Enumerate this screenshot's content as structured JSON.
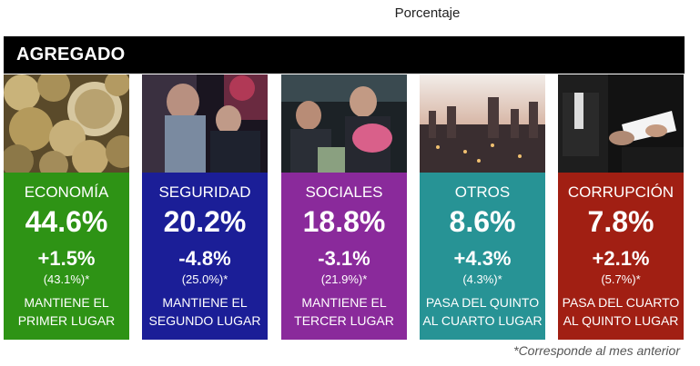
{
  "header_label": "Porcentaje",
  "section_title": "AGREGADO",
  "cards": [
    {
      "category": "ECONOMÍA",
      "percent": "44.6%",
      "change": "+1.5%",
      "previous": "(43.1%)*",
      "status_line1": "MANTIENE EL",
      "status_line2": "PRIMER LUGAR",
      "color": "#2e9315",
      "image": "coins-image"
    },
    {
      "category": "SEGURIDAD",
      "percent": "20.2%",
      "change": "-4.8%",
      "previous": "(25.0%)*",
      "status_line1": "MANTIENE EL",
      "status_line2": "SEGUNDO LUGAR",
      "color": "#1b1e97",
      "image": "arrest-image"
    },
    {
      "category": "SOCIALES",
      "percent": "18.8%",
      "change": "-3.1%",
      "previous": "(21.9%)*",
      "status_line1": "MANTIENE EL",
      "status_line2": "TERCER LUGAR",
      "color": "#8a2a9b",
      "image": "people-image"
    },
    {
      "category": "OTROS",
      "percent": "8.6%",
      "change": "+4.3%",
      "previous": "(4.3%)*",
      "status_line1": "PASA DEL QUINTO",
      "status_line2": "AL CUARTO LUGAR",
      "color": "#279395",
      "image": "city-image"
    },
    {
      "category": "CORRUPCIÓN",
      "percent": "7.8%",
      "change": "+2.1%",
      "previous": "(5.7%)*",
      "status_line1": "PASA DEL CUARTO",
      "status_line2": "AL QUINTO LUGAR",
      "color": "#a11f13",
      "image": "bribe-image"
    }
  ],
  "footnote": "*Corresponde al mes anterior"
}
